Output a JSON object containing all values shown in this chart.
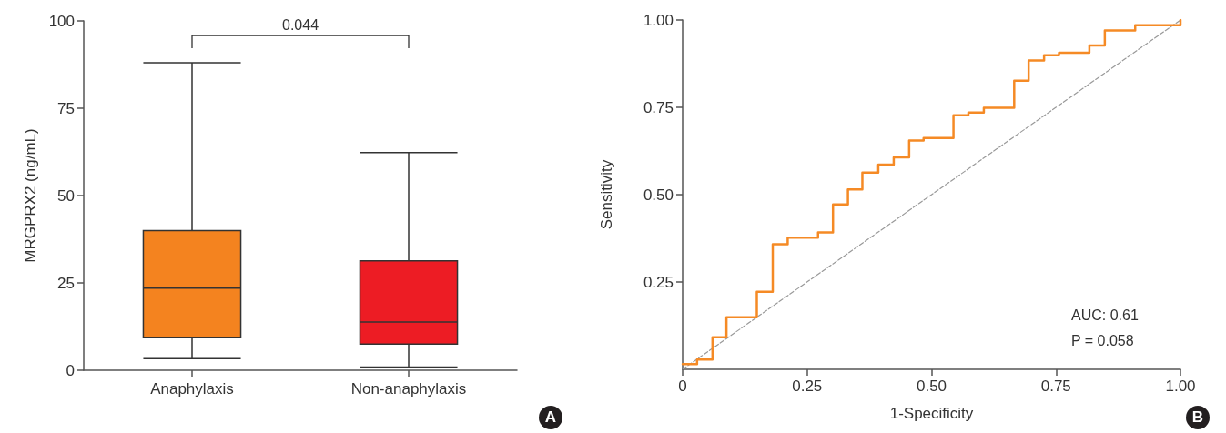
{
  "chart_data": [
    {
      "type": "box",
      "ylabel": "MRGPRX2 (ng/mL)",
      "categories": [
        "Anaphylaxis",
        "Non-anaphylaxis"
      ],
      "colors": [
        "#f4831f",
        "#ed1c24"
      ],
      "boxes": [
        {
          "low": 3.3,
          "q1": 9.3,
          "median": 23.5,
          "q3": 40,
          "high": 88
        },
        {
          "low": 0.9,
          "q1": 7.5,
          "median": 13.8,
          "q3": 31.3,
          "high": 62.3
        }
      ],
      "ylim": [
        0,
        100
      ],
      "yticks": [
        0,
        25,
        50,
        75,
        100
      ],
      "annotations": [
        "0.044",
        "A"
      ]
    },
    {
      "type": "step",
      "xlabel": "1-Specificity",
      "ylabel": "Sensitivity",
      "xlim": [
        0,
        1
      ],
      "ylim": [
        0,
        1
      ],
      "xticks": [
        0,
        {
          "value": 0.25,
          "label": "0.25"
        },
        {
          "value": 0.5,
          "label": "0.50"
        },
        {
          "value": 0.75,
          "label": "0.75"
        },
        {
          "value": 1,
          "label": "1.00"
        }
      ],
      "yticks": [
        {
          "value": 0.25,
          "label": "0.25"
        },
        {
          "value": 0.5,
          "label": "0.50"
        },
        {
          "value": 0.75,
          "label": "0.75"
        },
        {
          "value": 1,
          "label": "1.00"
        }
      ],
      "series": [
        {
          "color": "#f58a25",
          "x": [
            0,
            0.029,
            0.06,
            0.088,
            0.149,
            0.181,
            0.211,
            0.272,
            0.302,
            0.332,
            0.361,
            0.393,
            0.424,
            0.455,
            0.484,
            0.544,
            0.574,
            0.605,
            0.666,
            0.695,
            0.726,
            0.756,
            0.817,
            0.848,
            0.909,
            1
          ],
          "values": [
            0.015,
            0.028,
            0.092,
            0.149,
            0.222,
            0.358,
            0.377,
            0.392,
            0.472,
            0.515,
            0.563,
            0.586,
            0.607,
            0.655,
            0.662,
            0.727,
            0.735,
            0.749,
            0.826,
            0.884,
            0.899,
            0.906,
            0.927,
            0.97,
            0.985,
            1
          ]
        },
        {
          "type": "line",
          "color": "#999999",
          "line_style": "dashed",
          "x": [
            0,
            1
          ],
          "values": [
            0,
            1
          ]
        }
      ],
      "annotations": [
        "AUC: 0.61",
        "P = 0.058",
        "B"
      ]
    }
  ]
}
